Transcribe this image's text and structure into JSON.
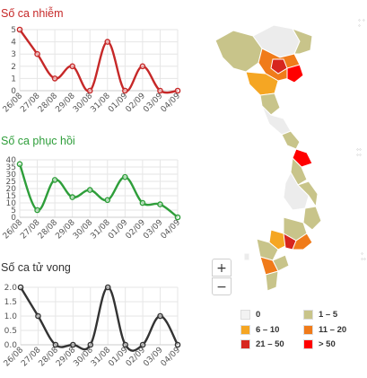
{
  "charts": [
    {
      "key": "infections",
      "title": "Số ca nhiễm",
      "color": "#c62828",
      "chart_data": {
        "type": "line",
        "title": "Số ca nhiễm",
        "categories": [
          "26/08",
          "27/08",
          "28/08",
          "29/08",
          "30/08",
          "31/08",
          "01/09",
          "02/09",
          "03/09",
          "04/09"
        ],
        "series": [
          {
            "values": [
              5,
              3,
              1,
              2,
              0,
              4,
              0,
              2,
              0,
              0
            ]
          }
        ],
        "ylim": [
          0,
          5
        ],
        "yticks": [
          0,
          1,
          2,
          3,
          4,
          5
        ],
        "grid": true
      }
    },
    {
      "key": "recovered",
      "title": "Số ca phục hồi",
      "color": "#2e9e3a",
      "chart_data": {
        "type": "line",
        "title": "Số ca phục hồi",
        "categories": [
          "26/08",
          "27/08",
          "28/08",
          "29/08",
          "30/08",
          "31/08",
          "01/09",
          "02/09",
          "03/09",
          "04/09"
        ],
        "series": [
          {
            "values": [
              37,
              5,
              26,
              14,
              19,
              12,
              28,
              10,
              9,
              0
            ]
          }
        ],
        "ylim": [
          0,
          40
        ],
        "yticks": [
          0,
          5,
          10,
          15,
          20,
          25,
          30,
          35,
          40
        ],
        "grid": true
      }
    },
    {
      "key": "deaths",
      "title": "Số ca tử vong",
      "color": "#333333",
      "chart_data": {
        "type": "line",
        "title": "Số ca tử vong",
        "categories": [
          "26/08",
          "27/08",
          "28/08",
          "29/08",
          "30/08",
          "31/08",
          "01/09",
          "02/09",
          "03/09",
          "04/09"
        ],
        "series": [
          {
            "values": [
              2,
              1,
              0,
              0,
              0,
              2,
              0,
              0,
              1,
              0
            ]
          }
        ],
        "ylim": [
          0,
          2
        ],
        "yticks": [
          "0.0",
          "0.5",
          "1.0",
          "1.5",
          "2.0"
        ],
        "grid": true
      }
    }
  ],
  "map": {
    "zoom_in_label": "+",
    "zoom_out_label": "−"
  },
  "legend": [
    {
      "label": "0",
      "color": "#f2f2f2"
    },
    {
      "label": "1 – 5",
      "color": "#c8c48a"
    },
    {
      "label": "6 – 10",
      "color": "#f5a623"
    },
    {
      "label": "11 – 20",
      "color": "#f07b1a"
    },
    {
      "label": "21 – 50",
      "color": "#d7261e"
    },
    {
      "label": "> 50",
      "color": "#ff0000"
    }
  ]
}
